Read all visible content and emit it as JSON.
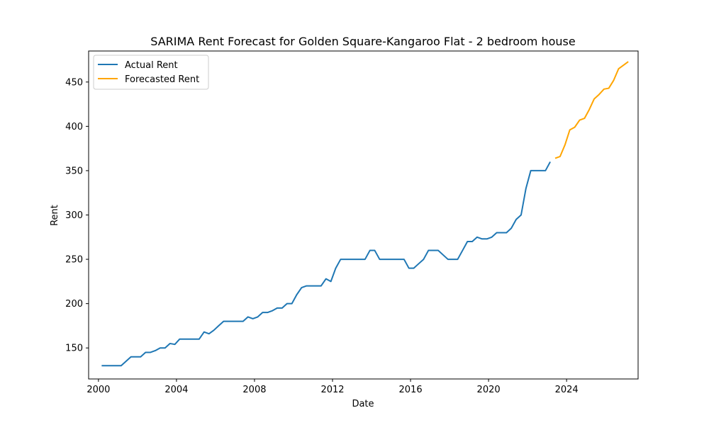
{
  "chart_data": {
    "type": "line",
    "title": "SARIMA Rent Forecast for Golden Square-Kangaroo Flat - 2 bedroom house",
    "xlabel": "Date",
    "ylabel": "Rent",
    "x_type": "date",
    "xlim": [
      "1999-07-01",
      "2027-09-01"
    ],
    "ylim": [
      115,
      485
    ],
    "x_ticks": [
      {
        "date": "2000-01-01",
        "label": "2000"
      },
      {
        "date": "2004-01-01",
        "label": "2004"
      },
      {
        "date": "2008-01-01",
        "label": "2008"
      },
      {
        "date": "2012-01-01",
        "label": "2012"
      },
      {
        "date": "2016-01-01",
        "label": "2016"
      },
      {
        "date": "2020-01-01",
        "label": "2020"
      },
      {
        "date": "2024-01-01",
        "label": "2024"
      }
    ],
    "y_ticks": [
      150,
      200,
      250,
      300,
      350,
      400,
      450
    ],
    "grid": false,
    "legend_position": "top-left",
    "series": [
      {
        "name": "Actual Rent",
        "color": "#1f77b4",
        "points": [
          [
            "2000-03-01",
            130
          ],
          [
            "2000-06-01",
            130
          ],
          [
            "2000-09-01",
            130
          ],
          [
            "2000-12-01",
            130
          ],
          [
            "2001-03-01",
            130
          ],
          [
            "2001-06-01",
            135
          ],
          [
            "2001-09-01",
            140
          ],
          [
            "2001-12-01",
            140
          ],
          [
            "2002-03-01",
            140
          ],
          [
            "2002-06-01",
            145
          ],
          [
            "2002-09-01",
            145
          ],
          [
            "2002-12-01",
            147
          ],
          [
            "2003-03-01",
            150
          ],
          [
            "2003-06-01",
            150
          ],
          [
            "2003-09-01",
            155
          ],
          [
            "2003-12-01",
            154
          ],
          [
            "2004-03-01",
            160
          ],
          [
            "2004-06-01",
            160
          ],
          [
            "2004-09-01",
            160
          ],
          [
            "2004-12-01",
            160
          ],
          [
            "2005-03-01",
            160
          ],
          [
            "2005-06-01",
            168
          ],
          [
            "2005-09-01",
            166
          ],
          [
            "2005-12-01",
            170
          ],
          [
            "2006-03-01",
            175
          ],
          [
            "2006-06-01",
            180
          ],
          [
            "2006-09-01",
            180
          ],
          [
            "2006-12-01",
            180
          ],
          [
            "2007-03-01",
            180
          ],
          [
            "2007-06-01",
            180
          ],
          [
            "2007-09-01",
            185
          ],
          [
            "2007-12-01",
            183
          ],
          [
            "2008-03-01",
            185
          ],
          [
            "2008-06-01",
            190
          ],
          [
            "2008-09-01",
            190
          ],
          [
            "2008-12-01",
            192
          ],
          [
            "2009-03-01",
            195
          ],
          [
            "2009-06-01",
            195
          ],
          [
            "2009-09-01",
            200
          ],
          [
            "2009-12-01",
            200
          ],
          [
            "2010-03-01",
            210
          ],
          [
            "2010-06-01",
            218
          ],
          [
            "2010-09-01",
            220
          ],
          [
            "2010-12-01",
            220
          ],
          [
            "2011-03-01",
            220
          ],
          [
            "2011-06-01",
            220
          ],
          [
            "2011-09-01",
            228
          ],
          [
            "2011-12-01",
            225
          ],
          [
            "2012-03-01",
            240
          ],
          [
            "2012-06-01",
            250
          ],
          [
            "2012-09-01",
            250
          ],
          [
            "2012-12-01",
            250
          ],
          [
            "2013-03-01",
            250
          ],
          [
            "2013-06-01",
            250
          ],
          [
            "2013-09-01",
            250
          ],
          [
            "2013-12-01",
            260
          ],
          [
            "2014-03-01",
            260
          ],
          [
            "2014-06-01",
            250
          ],
          [
            "2014-09-01",
            250
          ],
          [
            "2014-12-01",
            250
          ],
          [
            "2015-03-01",
            250
          ],
          [
            "2015-06-01",
            250
          ],
          [
            "2015-09-01",
            250
          ],
          [
            "2015-12-01",
            240
          ],
          [
            "2016-03-01",
            240
          ],
          [
            "2016-06-01",
            245
          ],
          [
            "2016-09-01",
            250
          ],
          [
            "2016-12-01",
            260
          ],
          [
            "2017-03-01",
            260
          ],
          [
            "2017-06-01",
            260
          ],
          [
            "2017-09-01",
            255
          ],
          [
            "2017-12-01",
            250
          ],
          [
            "2018-03-01",
            250
          ],
          [
            "2018-06-01",
            250
          ],
          [
            "2018-09-01",
            260
          ],
          [
            "2018-12-01",
            270
          ],
          [
            "2019-03-01",
            270
          ],
          [
            "2019-06-01",
            275
          ],
          [
            "2019-09-01",
            273
          ],
          [
            "2019-12-01",
            273
          ],
          [
            "2020-03-01",
            275
          ],
          [
            "2020-06-01",
            280
          ],
          [
            "2020-09-01",
            280
          ],
          [
            "2020-12-01",
            280
          ],
          [
            "2021-03-01",
            285
          ],
          [
            "2021-06-01",
            295
          ],
          [
            "2021-09-01",
            300
          ],
          [
            "2021-12-01",
            330
          ],
          [
            "2022-03-01",
            350
          ],
          [
            "2022-06-01",
            350
          ],
          [
            "2022-09-01",
            350
          ],
          [
            "2022-12-01",
            350
          ],
          [
            "2023-03-01",
            360
          ]
        ]
      },
      {
        "name": "Forecasted Rent",
        "color": "#ffa500",
        "points": [
          [
            "2023-06-01",
            364
          ],
          [
            "2023-09-01",
            366
          ],
          [
            "2023-12-01",
            379
          ],
          [
            "2024-03-01",
            396
          ],
          [
            "2024-06-01",
            399
          ],
          [
            "2024-09-01",
            407
          ],
          [
            "2024-12-01",
            409
          ],
          [
            "2025-03-01",
            419
          ],
          [
            "2025-06-01",
            431
          ],
          [
            "2025-09-01",
            436
          ],
          [
            "2025-12-01",
            442
          ],
          [
            "2026-03-01",
            443
          ],
          [
            "2026-06-01",
            452
          ],
          [
            "2026-09-01",
            465
          ],
          [
            "2026-12-01",
            469
          ],
          [
            "2027-03-01",
            473
          ]
        ]
      }
    ]
  }
}
